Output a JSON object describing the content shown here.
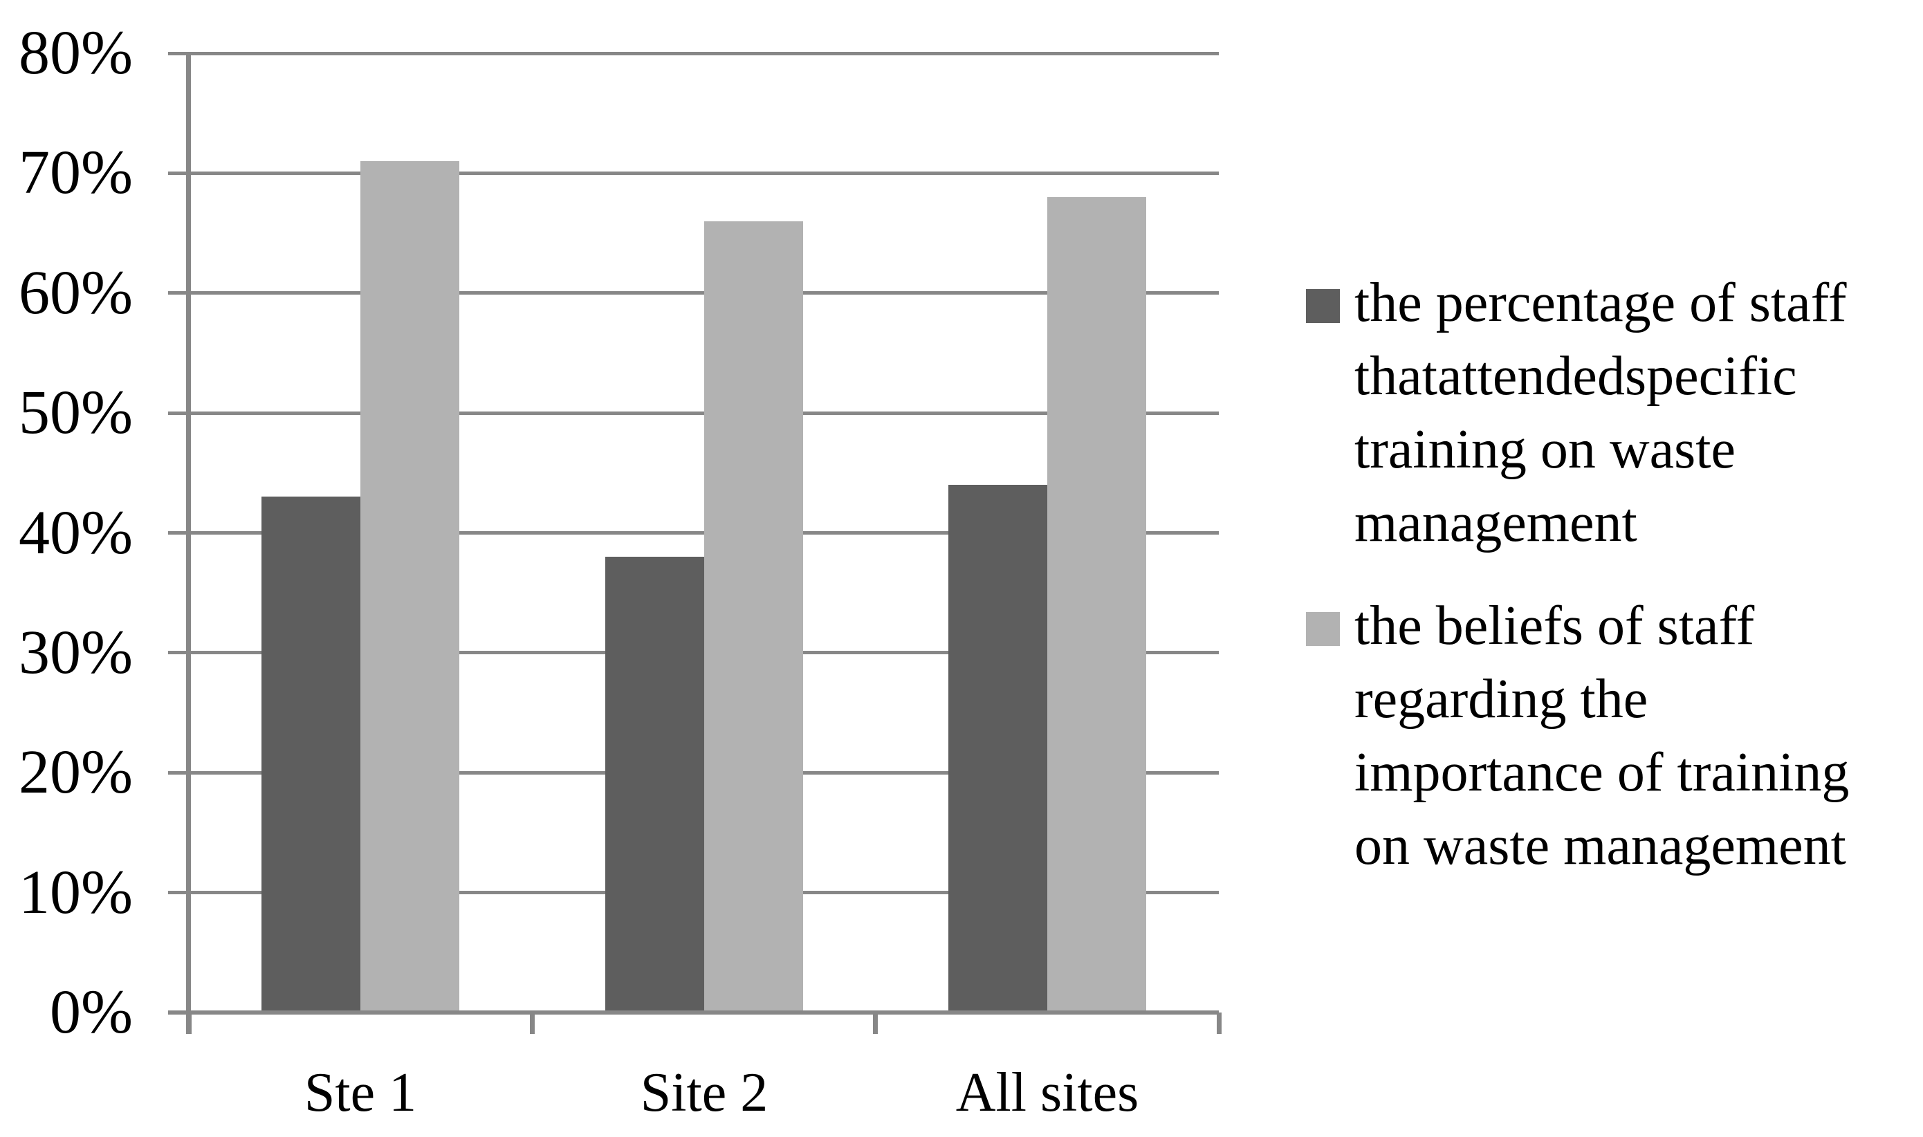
{
  "chart_data": {
    "type": "bar",
    "title": "",
    "xlabel": "",
    "ylabel": "",
    "categories": [
      "Ste 1",
      "Site 2",
      "All sites"
    ],
    "series": [
      {
        "name": "the percentage of staff thatattendedspecific training on waste management",
        "legend_lines": [
          "the percentage of staff",
          "thatattendedspecific",
          "training on waste",
          "management"
        ],
        "color": "#5e5e5e",
        "values": [
          43,
          38,
          44
        ]
      },
      {
        "name": "the beliefs of staff regarding the importance of training on waste management",
        "legend_lines": [
          "the beliefs of staff",
          "regarding the",
          "importance of training",
          "on waste management"
        ],
        "color": "#b2b2b2",
        "values": [
          71,
          66,
          68
        ]
      }
    ],
    "ylim": [
      0,
      80
    ],
    "ytick_step": 10,
    "ytick_labels": [
      "0%",
      "10%",
      "20%",
      "30%",
      "40%",
      "50%",
      "60%",
      "70%",
      "80%"
    ],
    "grid": true,
    "gridline_color": "#878787",
    "axis_color": "#878787",
    "background_color": "#ffffff",
    "text_color": "#000000",
    "legend_position": "right"
  }
}
